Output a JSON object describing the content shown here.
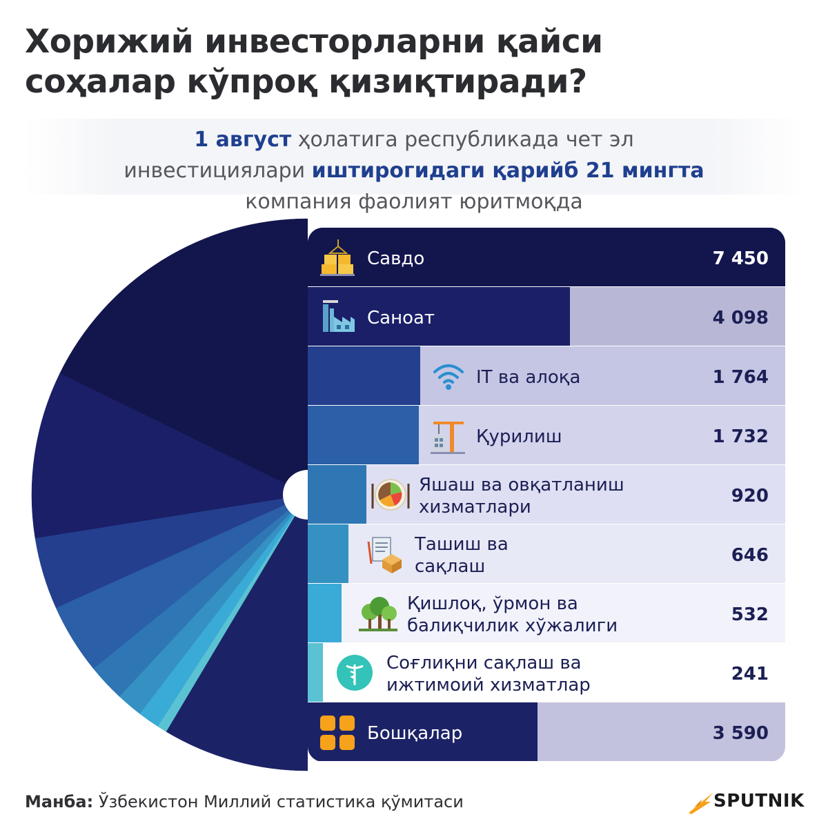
{
  "title_line1": "Хорижий инвесторларни қайси",
  "title_line2": "соҳалар кўпроқ қизиқтиради?",
  "subtitle": {
    "part1_hl": "1 август",
    "part2": " ҳолатига республикада чет эл",
    "part3": "инвестициялари ",
    "part4_hl": "иштирогидаги қарийб 21 мингта",
    "part5": "компания фаолият юритмоқда"
  },
  "source_label": "Манба:",
  "source_text": " Ўзбекистон Миллий статистика қўмитаси",
  "logo_text": "SPUTNIK",
  "colors": {
    "bg_light_row": "#c4c3e0",
    "text_dark": "#1b1f54",
    "brand_orange": "#f7a21b"
  },
  "chart_data": {
    "type": "pie",
    "title": "",
    "categories": [
      {
        "label": "Савдо",
        "value": 7450,
        "value_text": "7 450",
        "color": "#13154d",
        "icon": "boxes-icon"
      },
      {
        "label": "Саноат",
        "value": 4098,
        "value_text": "4 098",
        "color": "#1a1f68",
        "icon": "factory-icon"
      },
      {
        "label": "IT ва алоқа",
        "value": 1764,
        "value_text": "1 764",
        "color": "#243f8e",
        "icon": "wifi-icon"
      },
      {
        "label": "Қурилиш",
        "value": 1732,
        "value_text": "1 732",
        "color": "#2b5fa8",
        "icon": "crane-icon"
      },
      {
        "label": "Яшаш ва овқатланиш хизматлари",
        "value": 920,
        "value_text": "920",
        "color": "#2e76b4",
        "icon": "food-plate-icon"
      },
      {
        "label": "Ташиш ва сақлаш",
        "value": 646,
        "value_text": "646",
        "color": "#3491c2",
        "icon": "delivery-box-icon"
      },
      {
        "label": "Қишлоқ, ўрмон ва балиқчилик хўжалиги",
        "value": 532,
        "value_text": "532",
        "color": "#3aaad6",
        "icon": "trees-icon"
      },
      {
        "label": "Соғлиқни сақлаш ва ижтимоий хизматлар",
        "value": 241,
        "value_text": "241",
        "color": "#5ac2d2",
        "icon": "medical-icon"
      },
      {
        "label": "Бошқалар",
        "value": 3590,
        "value_text": "3 590",
        "color": "#1c2266",
        "icon": "grid-icon"
      }
    ]
  }
}
